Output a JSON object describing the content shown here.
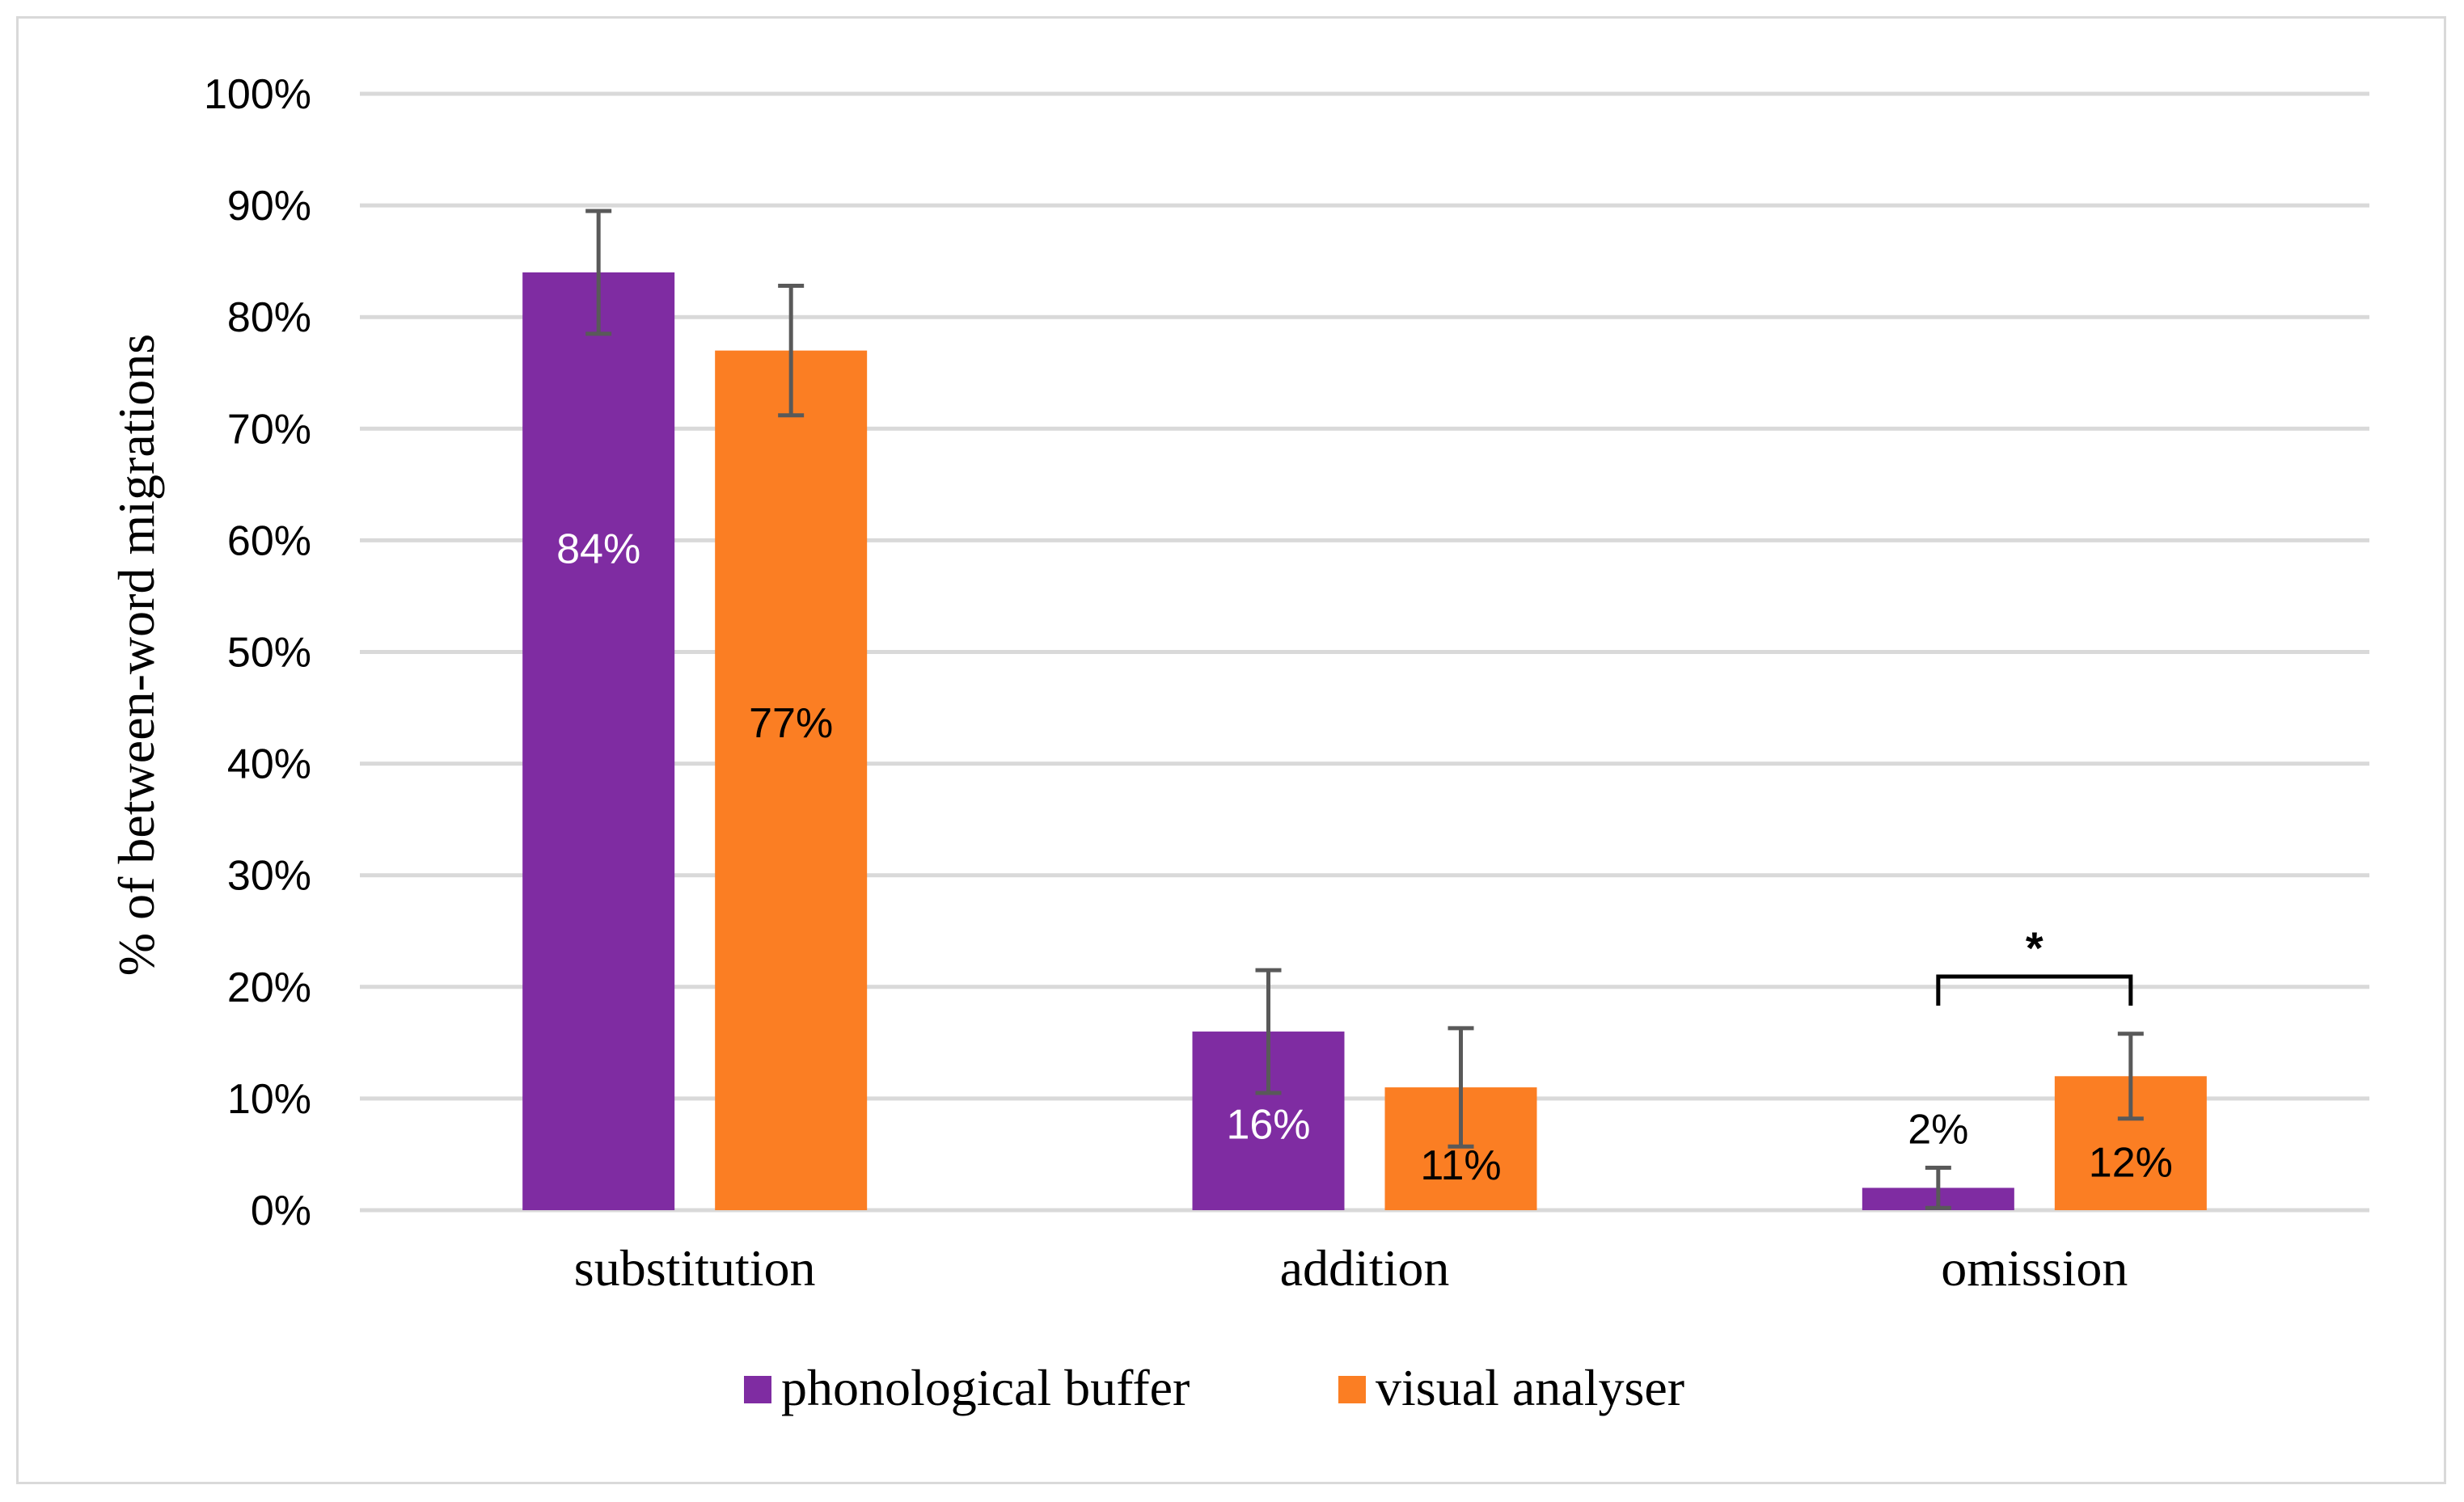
{
  "chart_data": {
    "type": "bar",
    "categories": [
      "substitution",
      "addition",
      "omission"
    ],
    "series": [
      {
        "name": "phonological buffer",
        "color": "#7F2CA2",
        "values": [
          84,
          16,
          2
        ],
        "labels": [
          "84%",
          "16%",
          "2%"
        ],
        "error": [
          5.5,
          5.5,
          1.8
        ]
      },
      {
        "name": "visual analyser",
        "color": "#FB7E23",
        "values": [
          77,
          11,
          12
        ],
        "labels": [
          "77%",
          "11%",
          "12%"
        ],
        "error": [
          5.8,
          5.3,
          3.8
        ]
      }
    ],
    "ylabel": "% of between-word migrations",
    "ylim": [
      0,
      100
    ],
    "yticks": [
      "0%",
      "10%",
      "20%",
      "30%",
      "40%",
      "50%",
      "60%",
      "70%",
      "80%",
      "90%",
      "100%"
    ],
    "grid": true,
    "legend_position": "bottom",
    "significance": {
      "category": "omission",
      "marker": "*"
    }
  }
}
